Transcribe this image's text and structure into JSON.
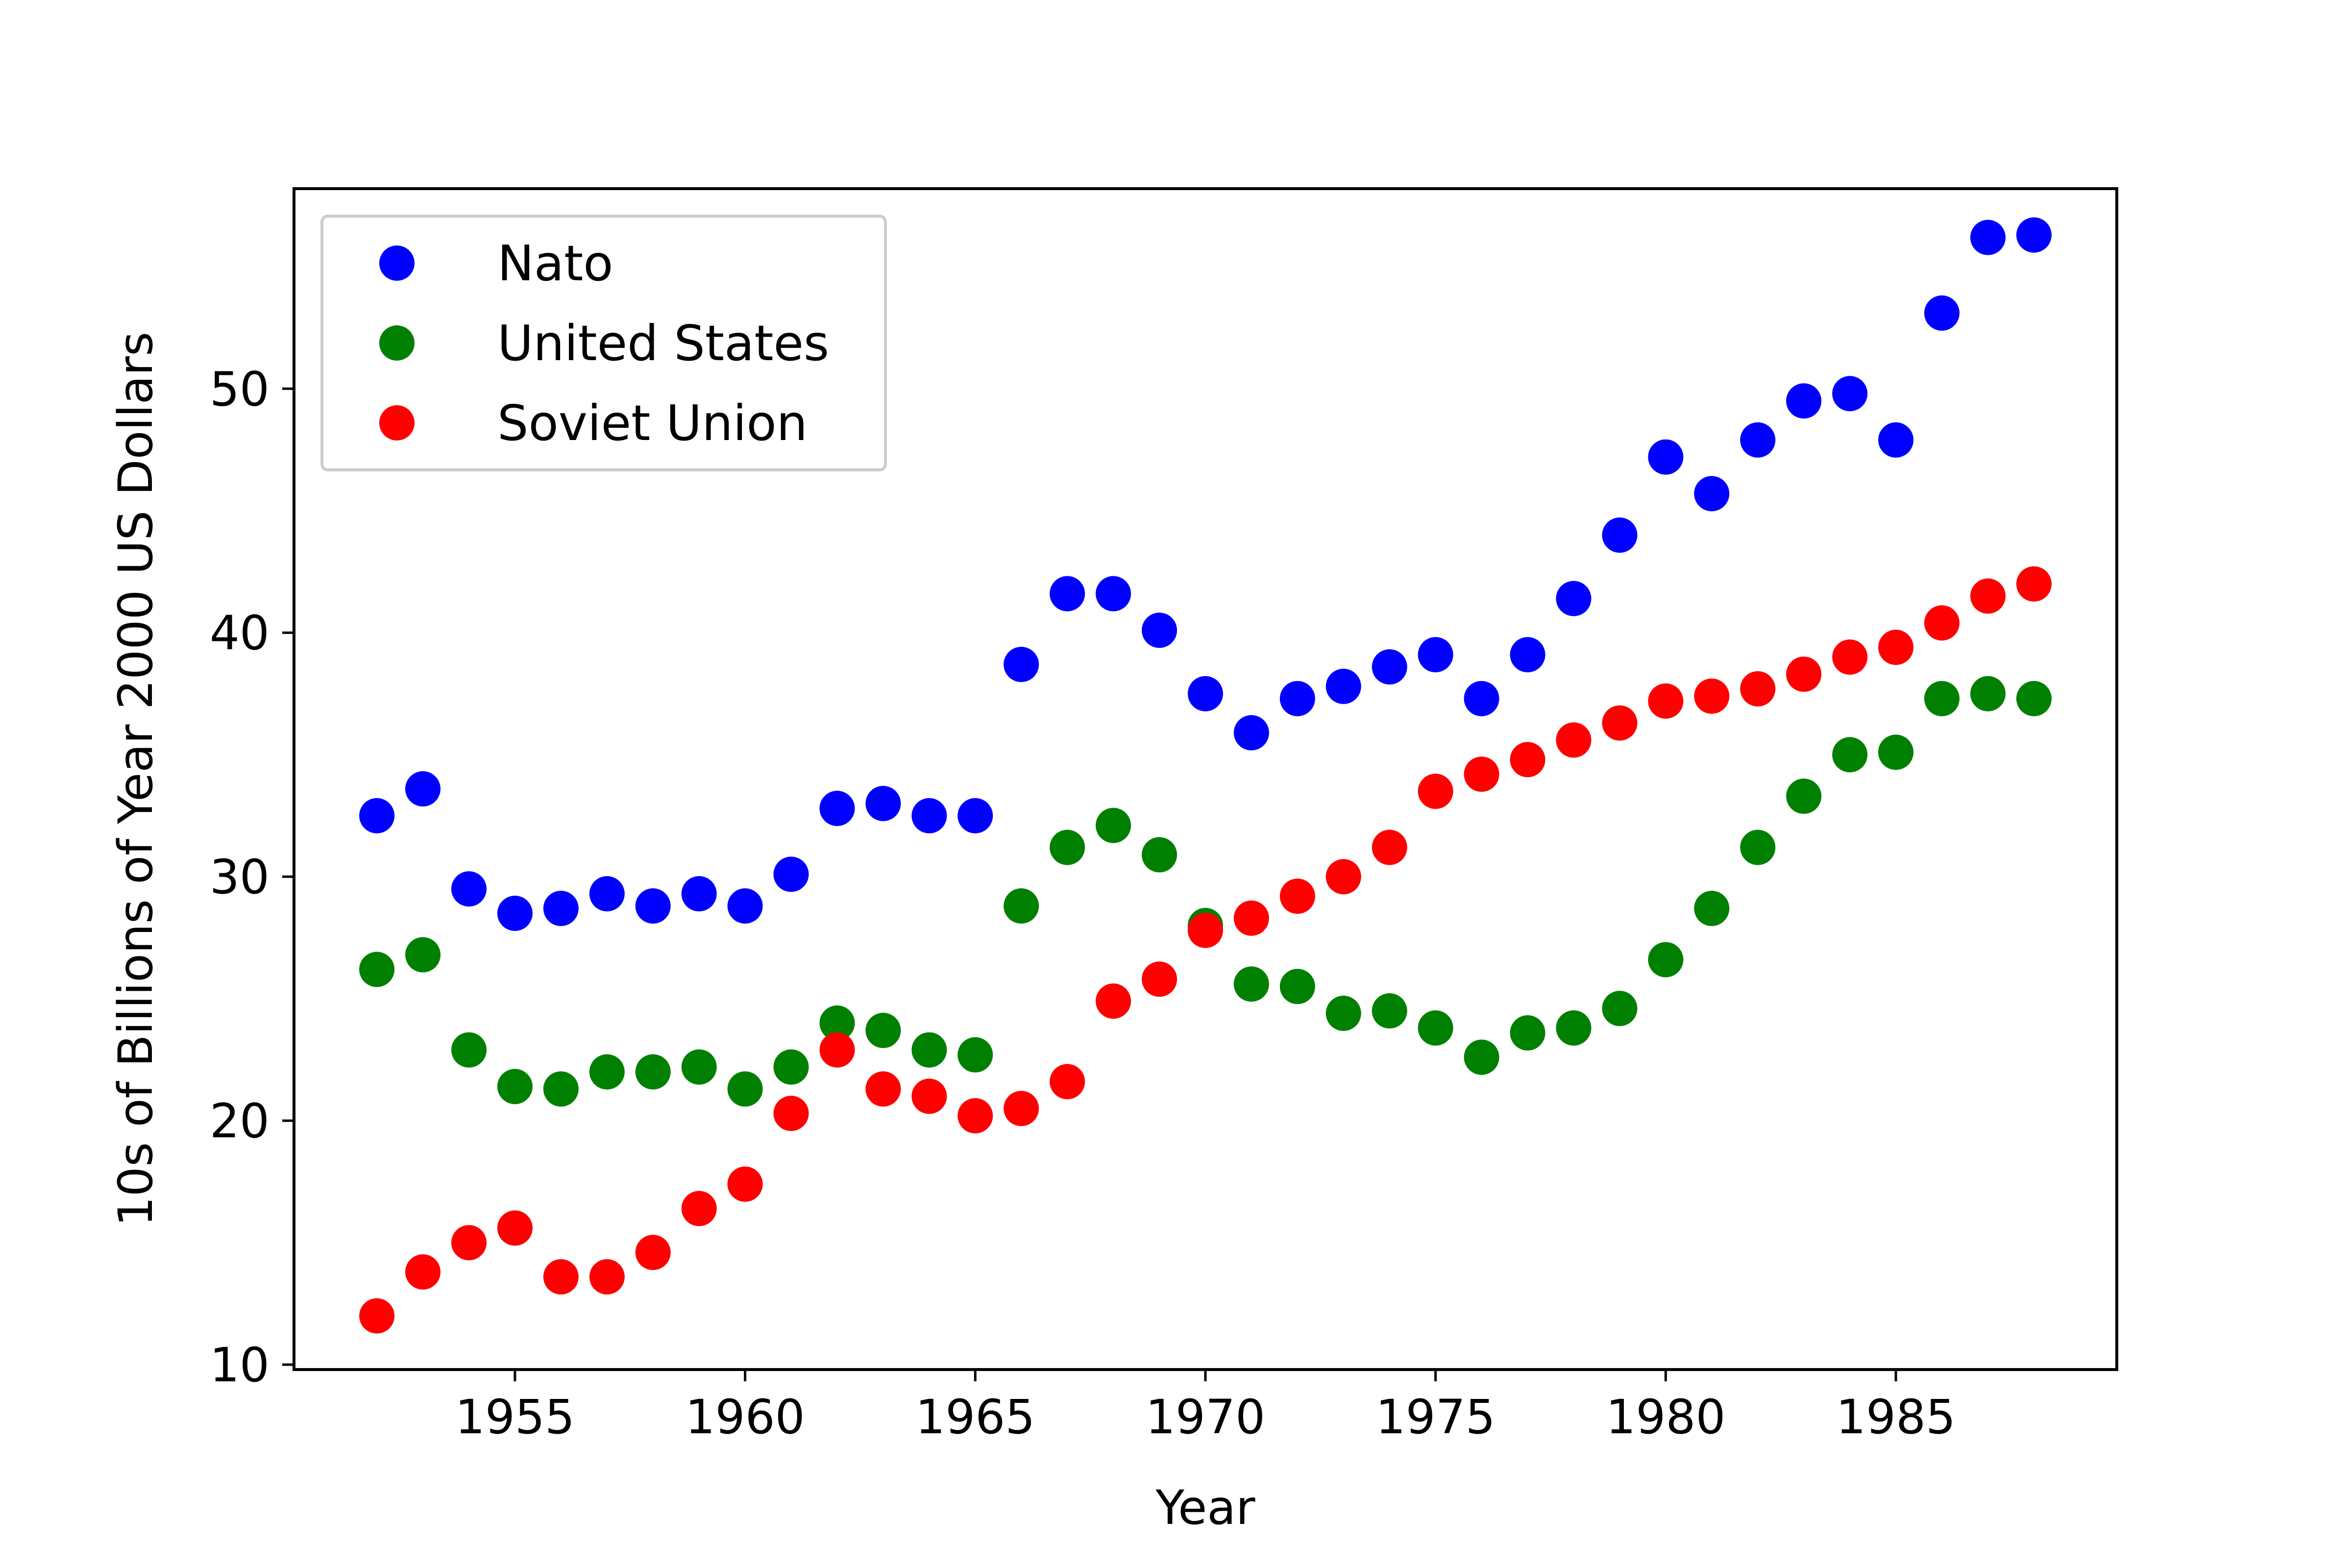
{
  "chart_data": {
    "type": "scatter",
    "title": "",
    "xlabel": "Year",
    "ylabel": "10s of Billions of Year 2000 US Dollars",
    "xlim": [
      1950.2,
      1989.8
    ],
    "ylim": [
      9.8,
      58.2
    ],
    "xticks": [
      1955,
      1960,
      1965,
      1970,
      1975,
      1980,
      1985
    ],
    "yticks": [
      10,
      20,
      30,
      40,
      50
    ],
    "grid": false,
    "legend_position": "upper-left",
    "x": [
      1952,
      1953,
      1954,
      1955,
      1956,
      1957,
      1958,
      1959,
      1960,
      1961,
      1962,
      1963,
      1964,
      1965,
      1966,
      1967,
      1968,
      1969,
      1970,
      1971,
      1972,
      1973,
      1974,
      1975,
      1976,
      1977,
      1978,
      1979,
      1980,
      1981,
      1982,
      1983,
      1984,
      1985,
      1986,
      1987,
      1988
    ],
    "series": [
      {
        "name": "Nato",
        "color": "#0000ff",
        "values": [
          32.5,
          33.6,
          29.5,
          28.5,
          28.7,
          29.3,
          28.8,
          29.3,
          28.8,
          30.1,
          32.8,
          33.0,
          32.5,
          32.5,
          38.7,
          41.6,
          41.6,
          40.1,
          37.5,
          35.9,
          37.3,
          37.8,
          38.6,
          39.1,
          37.3,
          39.1,
          41.4,
          44.0,
          47.2,
          45.7,
          47.9,
          49.5,
          49.8,
          47.9,
          53.1,
          56.2,
          56.3
        ]
      },
      {
        "name": "United States",
        "color": "#008000",
        "values": [
          26.2,
          26.8,
          22.9,
          21.4,
          21.3,
          22.0,
          22.0,
          22.2,
          21.3,
          22.2,
          24.0,
          23.7,
          22.9,
          22.7,
          28.8,
          31.2,
          32.1,
          30.9,
          28.0,
          25.6,
          25.5,
          24.4,
          24.5,
          23.8,
          22.6,
          23.6,
          23.8,
          24.6,
          26.6,
          28.7,
          31.2,
          33.3,
          35.0,
          35.1,
          37.3,
          37.5,
          37.3
        ]
      },
      {
        "name": "Soviet Union",
        "color": "#ff0000",
        "values": [
          12.0,
          13.8,
          15.0,
          15.6,
          13.6,
          13.6,
          14.6,
          16.4,
          17.4,
          20.3,
          22.9,
          21.3,
          21.0,
          20.2,
          20.5,
          21.6,
          24.9,
          25.8,
          27.8,
          28.3,
          29.2,
          30.0,
          31.2,
          33.5,
          34.2,
          34.8,
          35.6,
          36.3,
          37.2,
          37.4,
          37.7,
          38.3,
          39.0,
          39.4,
          40.4,
          41.5,
          42.0
        ]
      }
    ]
  }
}
